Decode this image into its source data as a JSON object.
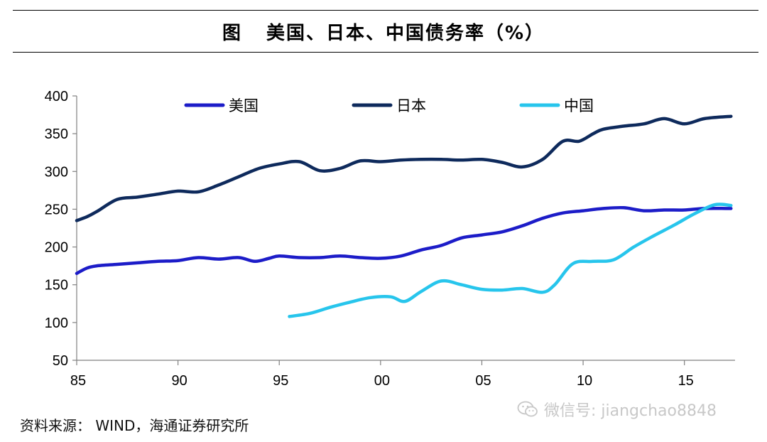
{
  "header": {
    "figure_label": "图",
    "title": "美国、日本、中国债务率（%）"
  },
  "source": "资料来源： WIND，海通证券研究所",
  "watermark": {
    "text": "微信号: jiangchao8848",
    "icon": "wechat-icon"
  },
  "chart_data": {
    "type": "line",
    "title": "美国、日本、中国债务率（%）",
    "xlabel": "",
    "ylabel": "",
    "xlim": [
      1985,
      2017.5
    ],
    "ylim": [
      50,
      400
    ],
    "y_ticks": [
      50,
      100,
      150,
      200,
      250,
      300,
      350,
      400
    ],
    "x_ticks": [
      1985,
      1990,
      1995,
      2000,
      2005,
      2010,
      2015
    ],
    "x_tick_labels": [
      "85",
      "90",
      "95",
      "00",
      "05",
      "10",
      "15"
    ],
    "grid": false,
    "legend": "top",
    "series": [
      {
        "name": "美国",
        "color": "#1c1cc8",
        "x": [
          1985,
          1985.5,
          1986,
          1987,
          1988,
          1989,
          1990,
          1991,
          1992,
          1993,
          1993.8,
          1994.5,
          1995,
          1996,
          1997,
          1998,
          1999,
          2000,
          2001,
          2002,
          2003,
          2004,
          2005,
          2006,
          2007,
          2008,
          2009,
          2010,
          2011,
          2012,
          2013,
          2014,
          2015,
          2016,
          2017.3
        ],
        "values": [
          165,
          172,
          175,
          177,
          179,
          181,
          182,
          186,
          184,
          186,
          181,
          185,
          188,
          186,
          186,
          188,
          186,
          185,
          188,
          196,
          202,
          212,
          216,
          220,
          228,
          238,
          245,
          248,
          251,
          252,
          248,
          249,
          249,
          251,
          251
        ]
      },
      {
        "name": "日本",
        "color": "#0e2a5c",
        "x": [
          1985,
          1985.5,
          1986,
          1987,
          1988,
          1989,
          1990,
          1991,
          1992,
          1993,
          1994,
          1995,
          1996,
          1997,
          1998,
          1999,
          2000,
          2001,
          2002,
          2003,
          2004,
          2005,
          2006,
          2007,
          2008,
          2009,
          2009.8,
          2010.5,
          2011,
          2012,
          2013,
          2014,
          2015,
          2016,
          2017.3
        ],
        "values": [
          235,
          240,
          247,
          263,
          266,
          270,
          274,
          273,
          282,
          293,
          304,
          310,
          313,
          301,
          304,
          314,
          313,
          315,
          316,
          316,
          315,
          316,
          312,
          306,
          316,
          340,
          340,
          350,
          356,
          360,
          363,
          370,
          363,
          370,
          373
        ]
      },
      {
        "name": "中国",
        "color": "#27c5ec",
        "x": [
          1995.5,
          1996.5,
          1997.5,
          1998.5,
          1999.5,
          2000.5,
          2001.2,
          2002,
          2003,
          2004,
          2005,
          2006,
          2007,
          2008,
          2008.6,
          2009.5,
          2010.5,
          2011.5,
          2012.5,
          2013.5,
          2014.5,
          2015.5,
          2016.5,
          2017.3
        ],
        "values": [
          108,
          112,
          120,
          127,
          133,
          134,
          128,
          141,
          155,
          150,
          144,
          143,
          145,
          140,
          150,
          178,
          181,
          183,
          200,
          215,
          229,
          244,
          256,
          255
        ]
      }
    ]
  }
}
